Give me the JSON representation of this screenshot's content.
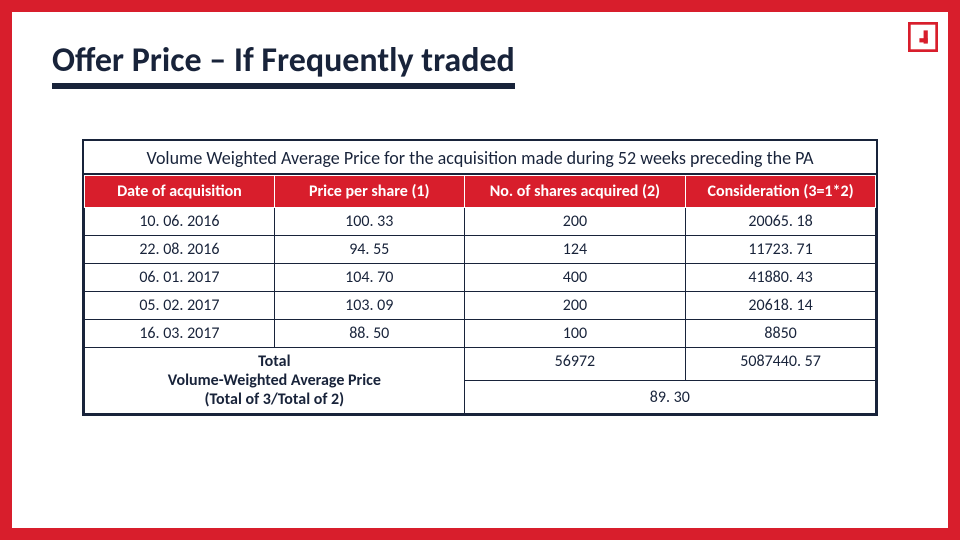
{
  "title": "Offer Price – If Frequently traded",
  "logo": {
    "color": "#d81e2c"
  },
  "table": {
    "caption": "Volume Weighted Average Price for the acquisition made during 52 weeks preceding the PA",
    "columns": [
      "Date of acquisition",
      "Price per share (1)",
      "No. of shares acquired (2)",
      "Consideration (3=1*2)"
    ],
    "rows": [
      [
        "10. 06. 2016",
        "100. 33",
        "200",
        "20065. 18"
      ],
      [
        "22. 08. 2016",
        "94. 55",
        "124",
        "11723. 71"
      ],
      [
        "06. 01. 2017",
        "104. 70",
        "400",
        "41880. 43"
      ],
      [
        "05. 02. 2017",
        "103. 09",
        "200",
        "20618. 14"
      ],
      [
        "16. 03. 2017",
        "88. 50",
        "100",
        "8850"
      ]
    ],
    "total": {
      "label": "Total",
      "shares_total": "56972",
      "consideration_total": "5087440. 57"
    },
    "vwap": {
      "label_line1": "Volume-Weighted Average Price",
      "label_line2": "(Total of 3/Total of 2)",
      "value": "89. 30"
    }
  },
  "colors": {
    "frame": "#d81e2c",
    "header_bg": "#d81e2c",
    "header_fg": "#ffffff",
    "text": "#18233a",
    "border": "#18233a",
    "bg": "#ffffff"
  }
}
